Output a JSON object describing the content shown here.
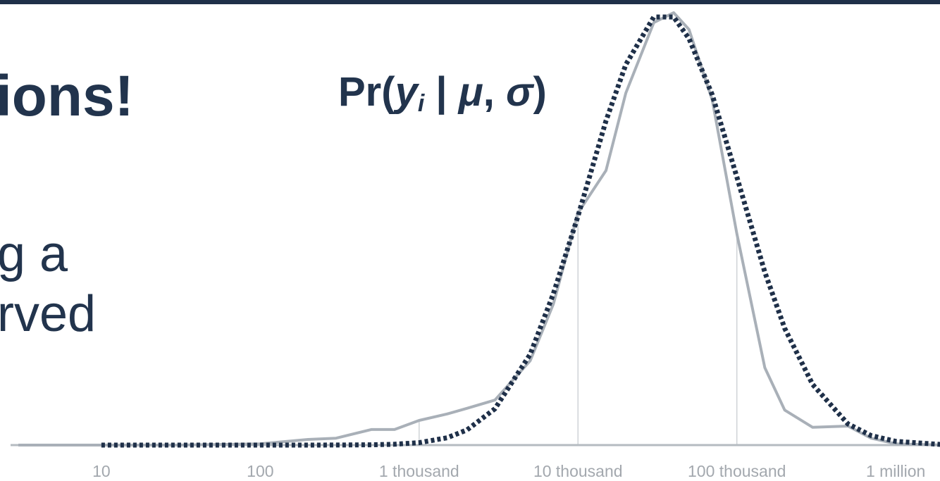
{
  "slide": {
    "heading_fragment": "ions!",
    "body_lines": [
      "g a",
      "rved"
    ],
    "formula": [
      "Pr(",
      "y",
      "i",
      " | ",
      "μ",
      ", ",
      "σ",
      ")"
    ]
  },
  "chart_data": {
    "type": "line",
    "x_scale": "log",
    "xlim": [
      2.3,
      1900000
    ],
    "ylim": [
      0,
      1
    ],
    "xticks": [
      10,
      100,
      {
        "value": 1000,
        "label": "1 thousand"
      },
      {
        "value": 10000,
        "label": "10 thousand"
      },
      {
        "value": 100000,
        "label": "100 thousand"
      },
      {
        "value": 1000000,
        "label": "1 million"
      }
    ],
    "grid": true,
    "x": [
      3,
      10,
      30,
      100,
      200,
      300,
      500,
      700,
      1000,
      1500,
      2000,
      3000,
      5000,
      7000,
      10000,
      15000,
      20000,
      30000,
      40000,
      50000,
      70000,
      100000,
      150000,
      200000,
      300000,
      500000,
      700000,
      1000000,
      2000000
    ],
    "series": [
      {
        "color": "#a9b0b8",
        "style": "solid",
        "values": [
          0,
          0,
          0,
          0.003,
          0.013,
          0.016,
          0.036,
          0.036,
          0.057,
          0.072,
          0.085,
          0.104,
          0.195,
          0.326,
          0.537,
          0.635,
          0.814,
          0.977,
          1.0,
          0.961,
          0.798,
          0.489,
          0.179,
          0.081,
          0.041,
          0.044,
          0.016,
          0.003,
          0
        ]
      },
      {
        "color": "#1f3049",
        "style": "dotted",
        "values": [
          null,
          0,
          0,
          0,
          0,
          0.0001,
          0.0007,
          0.002,
          0.0055,
          0.017,
          0.035,
          0.084,
          0.21,
          0.35,
          0.53,
          0.75,
          0.88,
          0.99,
          0.99,
          0.94,
          0.81,
          0.62,
          0.4,
          0.27,
          0.14,
          0.049,
          0.022,
          0.0086,
          0.001
        ]
      }
    ]
  }
}
